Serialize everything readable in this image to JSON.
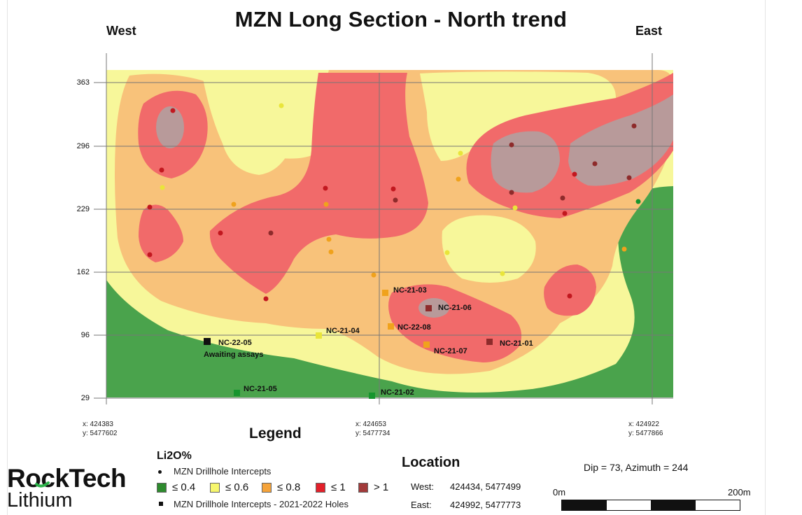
{
  "title": "MZN Long Section - North trend",
  "directions": {
    "west": "West",
    "east": "East"
  },
  "y_axis_ticks": [
    "363",
    "296",
    "229",
    "162",
    "96",
    "29"
  ],
  "coordinates": [
    {
      "x": "x: 424383",
      "y": "y: 5477602"
    },
    {
      "x": "x: 424653",
      "y": "y: 5477734"
    },
    {
      "x": "x: 424922",
      "y": "y: 5477866"
    }
  ],
  "drillholes": [
    {
      "id": "NC-21-03",
      "grade": "le_0_8"
    },
    {
      "id": "NC-21-06",
      "grade": "gt_1"
    },
    {
      "id": "NC-22-08",
      "grade": "le_0_8"
    },
    {
      "id": "NC-21-04",
      "grade": "le_0_6"
    },
    {
      "id": "NC-21-01",
      "grade": "gt_1"
    },
    {
      "id": "NC-21-07",
      "grade": "le_0_8"
    },
    {
      "id": "NC-22-05",
      "grade": "awaiting",
      "note": "Awaiting assays"
    },
    {
      "id": "NC-21-05",
      "grade": "le_0_4"
    },
    {
      "id": "NC-21-02",
      "grade": "le_0_4"
    }
  ],
  "legend": {
    "title": "Legend",
    "subtitle": "Li2O%",
    "intercepts_label": "MZN Drillhole Intercepts",
    "holes_label": "MZN Drillhole Intercepts  - 2021-2022 Holes",
    "classes": [
      {
        "label": "≤ 0.4",
        "color": "#2e8b2e"
      },
      {
        "label": "≤ 0.6",
        "color": "#f6f66c"
      },
      {
        "label": "≤ 0.8",
        "color": "#f5a33a"
      },
      {
        "label": "≤ 1",
        "color": "#e3202a"
      },
      {
        "label": "> 1",
        "color": "#a23a3a"
      }
    ]
  },
  "location": {
    "title": "Location",
    "rows": [
      {
        "key": "West:",
        "value": "424434, 5477499"
      },
      {
        "key": "East:",
        "value": "424992, 5477773"
      }
    ]
  },
  "orientation": "Dip = 73, Azimuth = 244",
  "scale": {
    "start": "0m",
    "end": "200m"
  },
  "logo": {
    "main": "RockTech",
    "sub": "Lithium",
    "accent": "#2cb34a"
  },
  "colors": {
    "green": "#4aa34c",
    "yellow": "#f7f79a",
    "orange": "#f8c27a",
    "red": "#f16a6a",
    "grey": "#b89a9a",
    "dot_red": "#c2181f",
    "dot_orange": "#f0a21c",
    "dot_yellow": "#e9e53a",
    "dot_green": "#16952e",
    "dot_maroon": "#8e2b2b"
  }
}
